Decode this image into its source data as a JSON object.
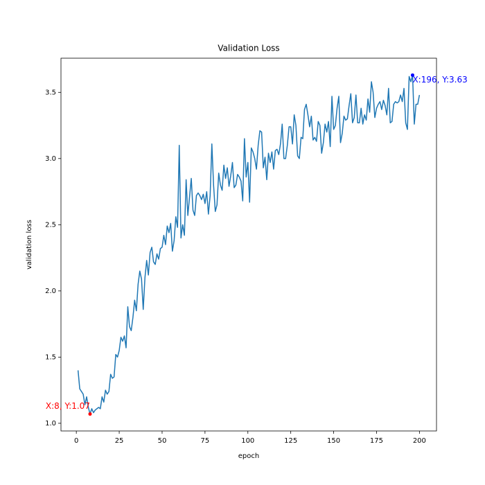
{
  "chart_data": {
    "type": "line",
    "title": "Validation Loss",
    "x_label": "epoch",
    "y_label": "validation loss",
    "x": [
      1,
      2,
      3,
      4,
      5,
      6,
      7,
      8,
      9,
      10,
      11,
      12,
      13,
      14,
      15,
      16,
      17,
      18,
      19,
      20,
      21,
      22,
      23,
      24,
      25,
      26,
      27,
      28,
      29,
      30,
      31,
      32,
      33,
      34,
      35,
      36,
      37,
      38,
      39,
      40,
      41,
      42,
      43,
      44,
      45,
      46,
      47,
      48,
      49,
      50,
      51,
      52,
      53,
      54,
      55,
      56,
      57,
      58,
      59,
      60,
      61,
      62,
      63,
      64,
      65,
      66,
      67,
      68,
      69,
      70,
      71,
      72,
      73,
      74,
      75,
      76,
      77,
      78,
      79,
      80,
      81,
      82,
      83,
      84,
      85,
      86,
      87,
      88,
      89,
      90,
      91,
      92,
      93,
      94,
      95,
      96,
      97,
      98,
      99,
      100,
      101,
      102,
      103,
      104,
      105,
      106,
      107,
      108,
      109,
      110,
      111,
      112,
      113,
      114,
      115,
      116,
      117,
      118,
      119,
      120,
      121,
      122,
      123,
      124,
      125,
      126,
      127,
      128,
      129,
      130,
      131,
      132,
      133,
      134,
      135,
      136,
      137,
      138,
      139,
      140,
      141,
      142,
      143,
      144,
      145,
      146,
      147,
      148,
      149,
      150,
      151,
      152,
      153,
      154,
      155,
      156,
      157,
      158,
      159,
      160,
      161,
      162,
      163,
      164,
      165,
      166,
      167,
      168,
      169,
      170,
      171,
      172,
      173,
      174,
      175,
      176,
      177,
      178,
      179,
      180,
      181,
      182,
      183,
      184,
      185,
      186,
      187,
      188,
      189,
      190,
      191,
      192,
      193,
      194,
      195,
      196,
      197,
      198,
      199,
      200
    ],
    "series": [
      {
        "name": "validation loss",
        "color": "#1f77b4",
        "values": [
          1.4,
          1.26,
          1.24,
          1.22,
          1.14,
          1.2,
          1.12,
          1.07,
          1.11,
          1.08,
          1.1,
          1.11,
          1.12,
          1.11,
          1.2,
          1.16,
          1.25,
          1.22,
          1.24,
          1.37,
          1.34,
          1.35,
          1.52,
          1.5,
          1.55,
          1.65,
          1.62,
          1.66,
          1.57,
          1.88,
          1.73,
          1.7,
          1.8,
          1.93,
          1.85,
          2.05,
          2.15,
          2.09,
          1.86,
          2.1,
          2.23,
          2.12,
          2.29,
          2.33,
          2.22,
          2.2,
          2.28,
          2.24,
          2.32,
          2.33,
          2.42,
          2.35,
          2.49,
          2.44,
          2.51,
          2.3,
          2.38,
          2.56,
          2.48,
          3.1,
          2.4,
          2.5,
          2.42,
          2.84,
          2.57,
          2.71,
          2.85,
          2.61,
          2.57,
          2.72,
          2.74,
          2.72,
          2.69,
          2.73,
          2.66,
          2.75,
          2.58,
          2.72,
          3.11,
          2.8,
          2.6,
          2.65,
          2.89,
          2.8,
          2.76,
          2.95,
          2.85,
          2.93,
          2.79,
          2.87,
          2.97,
          2.78,
          2.8,
          2.88,
          2.86,
          2.83,
          2.68,
          3.15,
          2.86,
          2.97,
          2.67,
          3.08,
          3.05,
          3.0,
          2.92,
          3.1,
          3.21,
          3.2,
          2.93,
          3.01,
          2.84,
          3.04,
          2.97,
          3.05,
          2.92,
          3.06,
          3.07,
          3.03,
          3.11,
          3.26,
          3.0,
          3.0,
          3.1,
          3.24,
          3.24,
          3.11,
          3.33,
          3.25,
          3.02,
          3.0,
          3.16,
          3.15,
          3.37,
          3.41,
          3.33,
          3.24,
          3.32,
          3.14,
          3.16,
          3.13,
          3.28,
          3.25,
          3.04,
          3.12,
          3.26,
          3.2,
          3.28,
          3.09,
          3.47,
          3.22,
          3.25,
          3.38,
          3.47,
          3.12,
          3.19,
          3.32,
          3.29,
          3.3,
          3.4,
          3.49,
          3.27,
          3.31,
          3.48,
          3.27,
          3.27,
          3.38,
          3.26,
          3.33,
          3.29,
          3.45,
          3.35,
          3.58,
          3.5,
          3.31,
          3.38,
          3.41,
          3.43,
          3.37,
          3.44,
          3.4,
          3.33,
          3.53,
          3.27,
          3.28,
          3.41,
          3.43,
          3.42,
          3.43,
          3.48,
          3.43,
          3.53,
          3.27,
          3.22,
          3.62,
          3.58,
          3.63,
          3.26,
          3.41,
          3.41,
          3.48
        ]
      }
    ],
    "annotations": [
      {
        "text": "X:8, Y:1.07",
        "x": 8,
        "y": 1.07,
        "color": "red"
      },
      {
        "text": "X:196, Y:3.63",
        "x": 196,
        "y": 3.63,
        "color": "blue"
      }
    ],
    "xlim": [
      -8.95,
      209.95
    ],
    "xticks": [
      0,
      25,
      50,
      75,
      100,
      125,
      150,
      175,
      200
    ],
    "ylim": [
      0.942,
      3.758
    ],
    "yticks": [
      {
        "value": 1,
        "label": "1.0"
      },
      1.5,
      {
        "value": 2,
        "label": "2.0"
      },
      2.5,
      {
        "value": 3,
        "label": "3.0"
      },
      3.5
    ]
  }
}
